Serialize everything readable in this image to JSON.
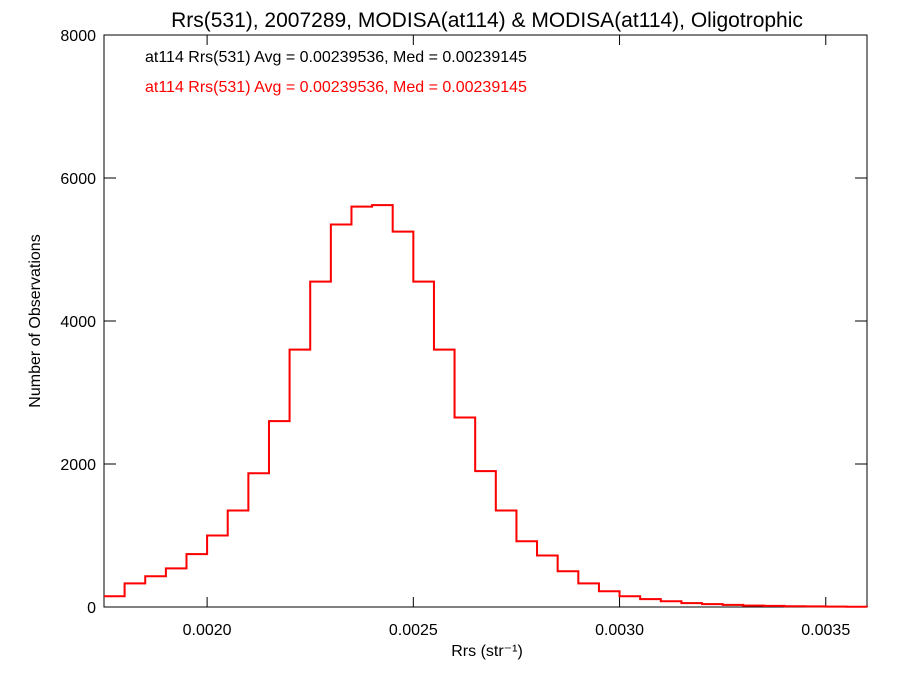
{
  "chart_data": {
    "type": "line",
    "title": "Rrs(531), 2007289, MODISA(at114) & MODISA(at114), Oligotrophic",
    "xlabel": "Rrs (str⁻¹)",
    "ylabel": "Number of Observations",
    "xlim": [
      0.00175,
      0.0036
    ],
    "ylim": [
      0,
      8000
    ],
    "xticks": [
      0.002,
      0.0025,
      0.003,
      0.0035
    ],
    "xtick_labels": [
      "0.0020",
      "0.0025",
      "0.0030",
      "0.0035"
    ],
    "yticks": [
      0,
      2000,
      4000,
      6000,
      8000
    ],
    "ytick_labels": [
      "0",
      "2000",
      "4000",
      "6000",
      "8000"
    ],
    "annotations": [
      {
        "text": "at114 Rrs(531) Avg = 0.00239536, Med = 0.00239145",
        "color": "#000000"
      },
      {
        "text": "at114 Rrs(531) Avg = 0.00239536, Med = 0.00239145",
        "color": "#ff0000"
      }
    ],
    "series": [
      {
        "color": "#000000",
        "x": [
          0.00175,
          0.0018,
          0.00185,
          0.0019,
          0.00195,
          0.002,
          0.00205,
          0.0021,
          0.00215,
          0.0022,
          0.00225,
          0.0023,
          0.00235,
          0.0024,
          0.00245,
          0.0025,
          0.00255,
          0.0026,
          0.00265,
          0.0027,
          0.00275,
          0.0028,
          0.00285,
          0.0029,
          0.00295,
          0.003,
          0.00305,
          0.0031,
          0.00315,
          0.0032,
          0.00325,
          0.0033,
          0.00335,
          0.0034,
          0.00345,
          0.0035,
          0.00355,
          0.0036
        ],
        "y": [
          150,
          330,
          430,
          540,
          740,
          1000,
          1350,
          1870,
          2600,
          3600,
          4550,
          5350,
          5600,
          5620,
          5250,
          4550,
          3600,
          2650,
          1900,
          1350,
          920,
          720,
          500,
          330,
          220,
          150,
          110,
          80,
          55,
          40,
          30,
          20,
          15,
          10,
          8,
          5,
          3,
          2
        ]
      },
      {
        "color": "#ff0000",
        "x": [
          0.00175,
          0.0018,
          0.00185,
          0.0019,
          0.00195,
          0.002,
          0.00205,
          0.0021,
          0.00215,
          0.0022,
          0.00225,
          0.0023,
          0.00235,
          0.0024,
          0.00245,
          0.0025,
          0.00255,
          0.0026,
          0.00265,
          0.0027,
          0.00275,
          0.0028,
          0.00285,
          0.0029,
          0.00295,
          0.003,
          0.00305,
          0.0031,
          0.00315,
          0.0032,
          0.00325,
          0.0033,
          0.00335,
          0.0034,
          0.00345,
          0.0035,
          0.00355,
          0.0036
        ],
        "y": [
          150,
          330,
          430,
          540,
          740,
          1000,
          1350,
          1870,
          2600,
          3600,
          4550,
          5350,
          5600,
          5620,
          5250,
          4550,
          3600,
          2650,
          1900,
          1350,
          920,
          720,
          500,
          330,
          220,
          150,
          110,
          80,
          55,
          40,
          30,
          20,
          15,
          10,
          8,
          5,
          3,
          2
        ]
      }
    ],
    "grid": false,
    "legend": "none"
  }
}
